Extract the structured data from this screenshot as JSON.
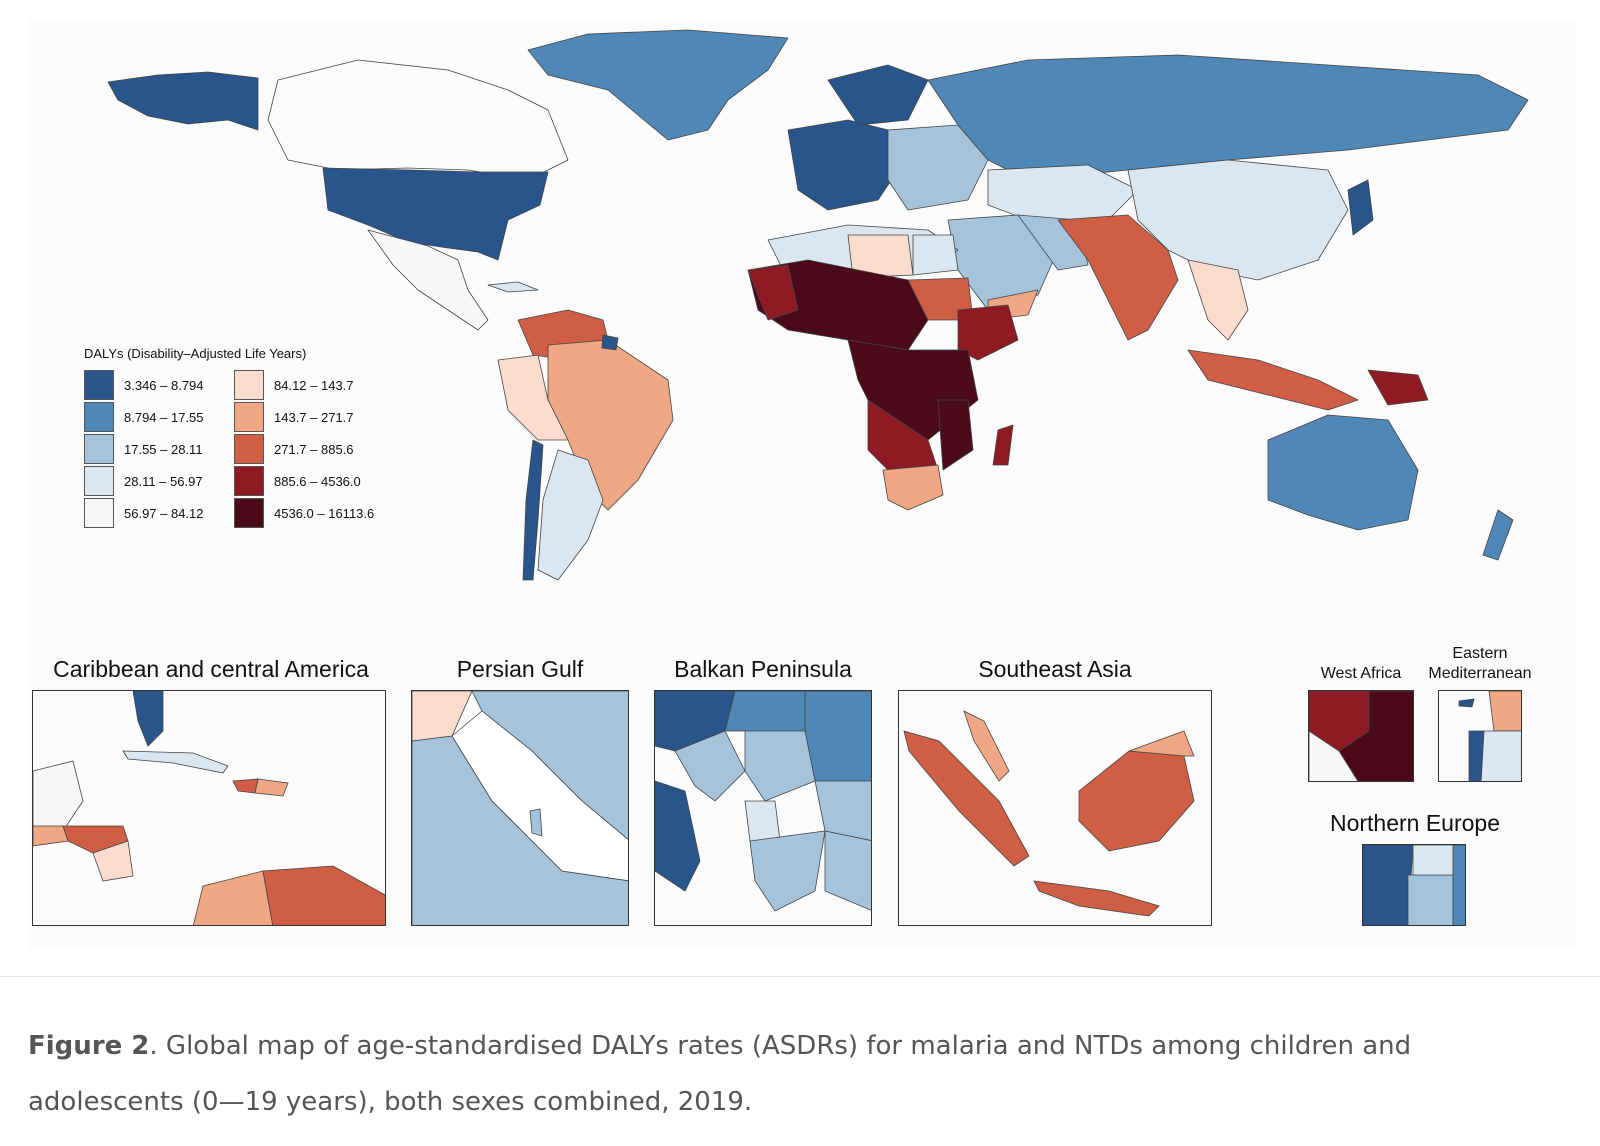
{
  "legend": {
    "title": "DALYs (Disability–Adjusted Life Years)",
    "bins": [
      {
        "label": "3.346 – 8.794",
        "color": "#27558c"
      },
      {
        "label": "8.794 – 17.55",
        "color": "#4f87b6"
      },
      {
        "label": "17.55 – 28.11",
        "color": "#a5c4dc"
      },
      {
        "label": "28.11 – 56.97",
        "color": "#dae7f1"
      },
      {
        "label": "56.97 – 84.12",
        "color": "#f7f7f7"
      },
      {
        "label": "84.12 – 143.7",
        "color": "#f9dccd"
      },
      {
        "label": "143.7 – 271.7",
        "color": "#efa784"
      },
      {
        "label": "271.7 – 885.6",
        "color": "#cf5e45"
      },
      {
        "label": "885.6 – 4536.0",
        "color": "#8f1a24"
      },
      {
        "label": "4536.0 – 16113.6",
        "color": "#4a0a1a"
      }
    ]
  },
  "insets": {
    "caribbean": "Caribbean and central America",
    "gulf": "Persian Gulf",
    "balkan": "Balkan Peninsula",
    "seasia": "Southeast Asia",
    "west_africa": "West Africa",
    "eastern_med_line1": "Eastern",
    "eastern_med_line2": "Mediterranean",
    "northern_europe": "Northern Europe"
  },
  "caption": {
    "label": "Figure 2",
    "text": ". Global map of age-standardised DALYs rates (ASDRs) for malaria and NTDs among children and adolescents (0—19 years), both sexes combined, 2019."
  },
  "colors": {
    "c1": "#27558c",
    "c2": "#4f87b6",
    "c3": "#a5c4dc",
    "c4": "#dae7f1",
    "c5": "#f7f7f7",
    "c6": "#f9dccd",
    "c7": "#efa784",
    "c8": "#cf5e45",
    "c9": "#8f1a24",
    "c10": "#4a0a1a"
  }
}
